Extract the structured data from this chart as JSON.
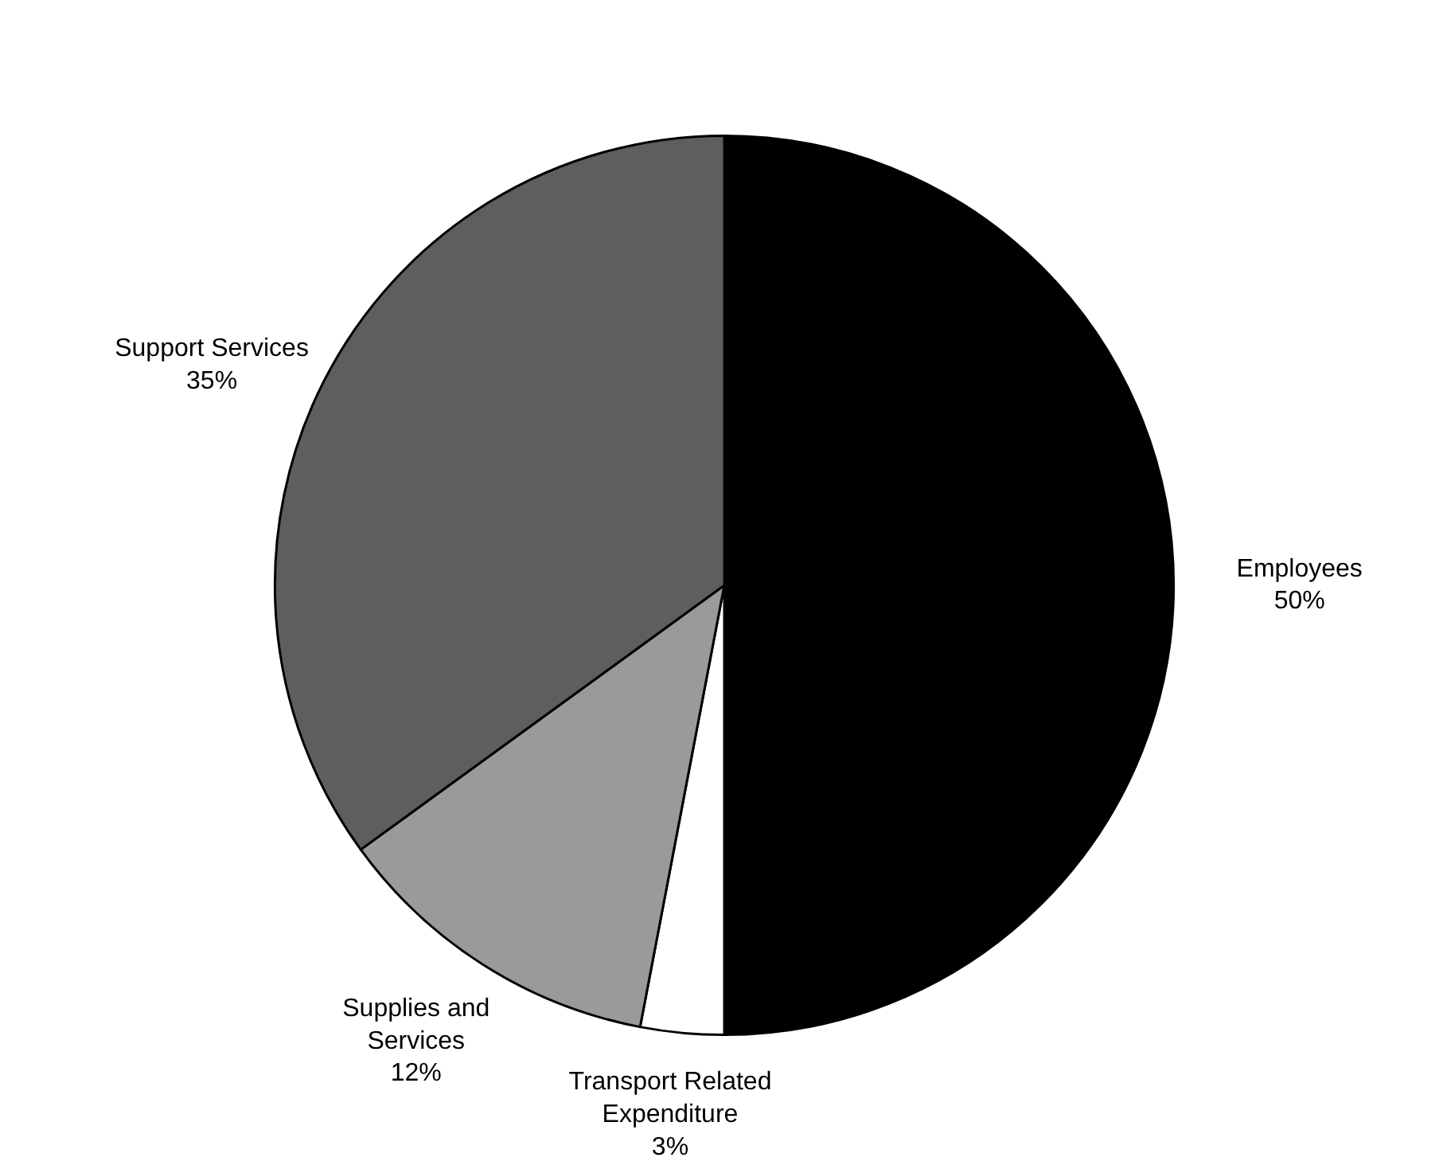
{
  "chart_data": {
    "type": "pie",
    "categories": [
      "Employees",
      "Transport Related Expenditure",
      "Supplies and Services",
      "Support Services"
    ],
    "values": [
      50,
      3,
      12,
      35
    ],
    "colors": [
      "#000000",
      "#ffffff",
      "#9a9a9a",
      "#5e5e5e"
    ],
    "value_labels": [
      "50%",
      "3%",
      "12%",
      "35%"
    ]
  }
}
